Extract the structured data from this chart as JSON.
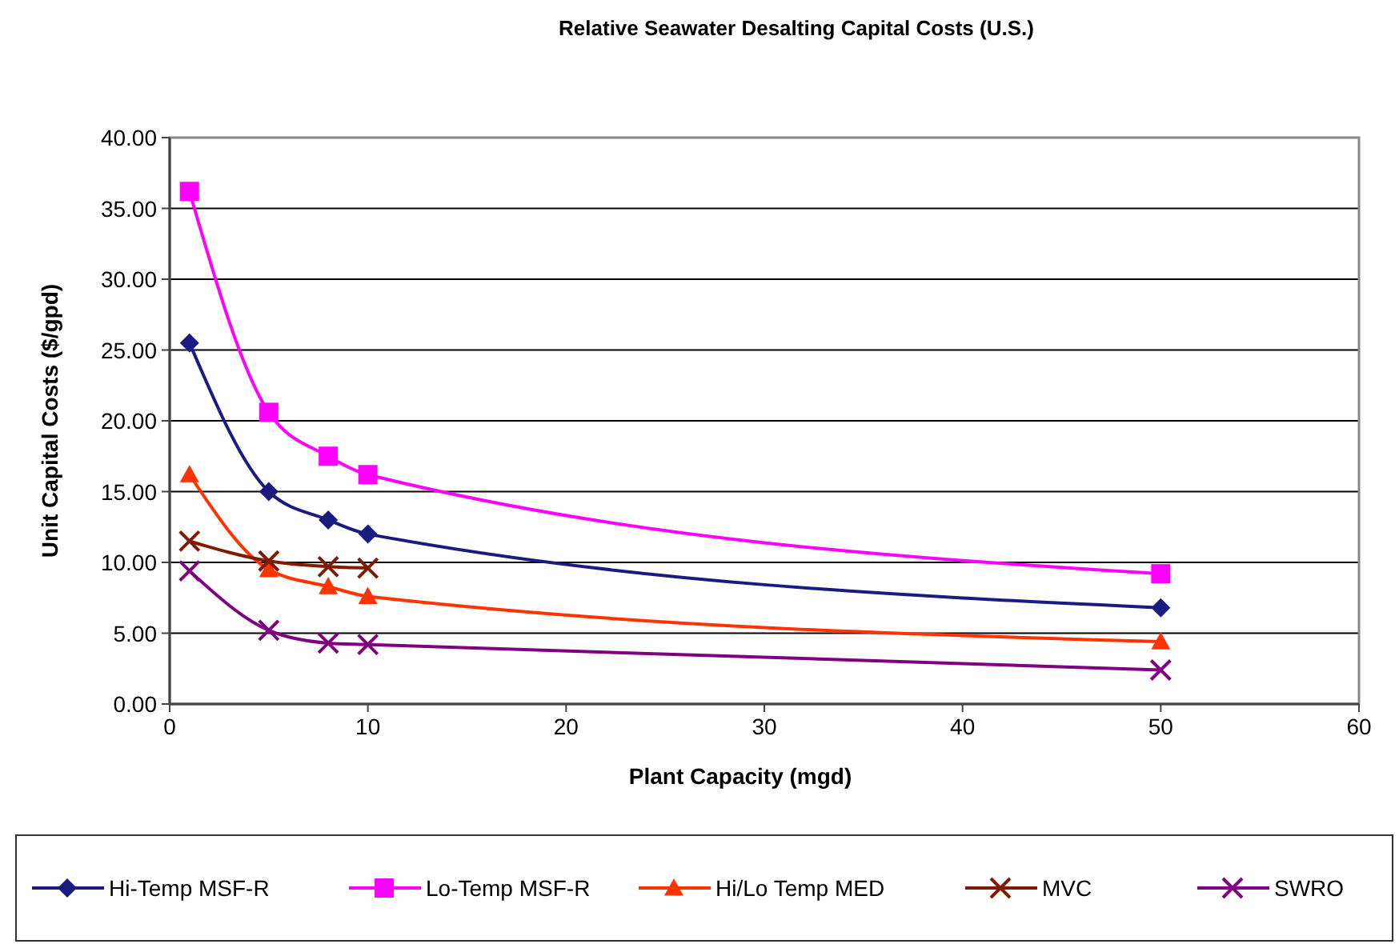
{
  "chart_data": {
    "type": "line",
    "title": "Relative Seawater Desalting Capital Costs (U.S.)",
    "xlabel": "Plant Capacity (mgd)",
    "ylabel": "Unit Capital Costs ($/gpd)",
    "x": [
      1,
      5,
      8,
      10,
      50
    ],
    "xlim": [
      0,
      60
    ],
    "xticks": [
      0,
      10,
      20,
      30,
      40,
      50,
      60
    ],
    "ylim": [
      0,
      40
    ],
    "yticks": [
      {
        "value": 0,
        "label": "0.00"
      },
      {
        "value": 5,
        "label": "5.00"
      },
      {
        "value": 10,
        "label": "10.00"
      },
      {
        "value": 15,
        "label": "15.00"
      },
      {
        "value": 20,
        "label": "20.00"
      },
      {
        "value": 25,
        "label": "25.00"
      },
      {
        "value": 30,
        "label": "30.00"
      },
      {
        "value": 35,
        "label": "35.00"
      },
      {
        "value": 40,
        "label": "40.00"
      }
    ],
    "grid": "y",
    "legend": "bottom",
    "line_style": "solid",
    "series": [
      {
        "name": "Hi-Temp MSF-R",
        "color": "#1a1a80",
        "marker": "diamond",
        "values": [
          25.5,
          15.0,
          13.0,
          12.0,
          6.8
        ]
      },
      {
        "name": "Lo-Temp MSF-R",
        "color": "#ff00ff",
        "marker": "square",
        "values": [
          36.2,
          20.6,
          17.5,
          16.2,
          9.2
        ]
      },
      {
        "name": "Hi/Lo Temp MED",
        "color": "#ff3300",
        "marker": "triangle",
        "values": [
          16.2,
          9.5,
          8.3,
          7.6,
          4.4
        ]
      },
      {
        "name": "MVC",
        "color": "#801a00",
        "marker": "cross",
        "x": [
          1,
          5,
          8,
          10
        ],
        "values": [
          11.5,
          10.1,
          9.7,
          9.6
        ]
      },
      {
        "name": "SWRO",
        "color": "#800080",
        "marker": "cross",
        "values": [
          9.4,
          5.2,
          4.3,
          4.2,
          2.4
        ]
      }
    ]
  }
}
